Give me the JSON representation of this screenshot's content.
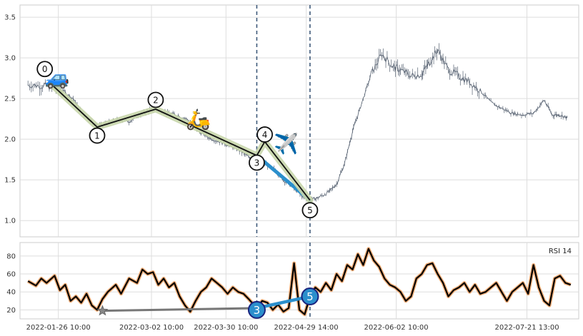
{
  "chart_data": [
    {
      "type": "line",
      "panel": "price",
      "x_start": "2022-01-12",
      "x_end": "2022-08-10",
      "ylim": [
        0.8,
        3.65
      ],
      "yticks": [
        1.0,
        1.5,
        2.0,
        2.5,
        3.0,
        3.5
      ],
      "grid": true,
      "series": [
        {
          "kind": "price-candles",
          "color": "#556070",
          "points": [
            [
              "2022-01-15",
              2.67
            ],
            [
              "2022-01-20",
              2.66
            ],
            [
              "2022-01-24",
              2.64
            ],
            [
              "2022-01-28",
              2.6
            ],
            [
              "2022-02-01",
              2.5
            ],
            [
              "2022-02-04",
              2.33
            ],
            [
              "2022-02-08",
              2.22
            ],
            [
              "2022-02-10",
              2.15
            ],
            [
              "2022-02-14",
              2.2
            ],
            [
              "2022-02-18",
              2.24
            ],
            [
              "2022-02-22",
              2.22
            ],
            [
              "2022-02-26",
              2.3
            ],
            [
              "2022-03-01",
              2.35
            ],
            [
              "2022-03-04",
              2.37
            ],
            [
              "2022-03-08",
              2.32
            ],
            [
              "2022-03-12",
              2.3
            ],
            [
              "2022-03-16",
              2.24
            ],
            [
              "2022-03-20",
              2.1
            ],
            [
              "2022-03-24",
              2.02
            ],
            [
              "2022-03-28",
              1.97
            ],
            [
              "2022-04-01",
              1.92
            ],
            [
              "2022-04-05",
              1.85
            ],
            [
              "2022-04-08",
              1.78
            ],
            [
              "2022-04-11",
              1.8
            ],
            [
              "2022-04-14",
              1.7
            ],
            [
              "2022-04-18",
              1.62
            ],
            [
              "2022-04-21",
              1.5
            ],
            [
              "2022-04-25",
              1.4
            ],
            [
              "2022-04-28",
              1.3
            ],
            [
              "2022-05-01",
              1.25
            ],
            [
              "2022-05-04",
              1.28
            ],
            [
              "2022-05-08",
              1.35
            ],
            [
              "2022-05-11",
              1.45
            ],
            [
              "2022-05-14",
              1.7
            ],
            [
              "2022-05-17",
              2.1
            ],
            [
              "2022-05-20",
              2.4
            ],
            [
              "2022-05-24",
              2.8
            ],
            [
              "2022-05-28",
              3.05
            ],
            [
              "2022-06-01",
              2.9
            ],
            [
              "2022-06-04",
              2.85
            ],
            [
              "2022-06-08",
              2.78
            ],
            [
              "2022-06-12",
              2.8
            ],
            [
              "2022-06-15",
              2.95
            ],
            [
              "2022-06-18",
              3.1
            ],
            [
              "2022-06-22",
              2.85
            ],
            [
              "2022-06-26",
              2.78
            ],
            [
              "2022-06-30",
              2.7
            ],
            [
              "2022-07-04",
              2.6
            ],
            [
              "2022-07-08",
              2.45
            ],
            [
              "2022-07-12",
              2.38
            ],
            [
              "2022-07-16",
              2.32
            ],
            [
              "2022-07-20",
              2.3
            ],
            [
              "2022-07-24",
              2.32
            ],
            [
              "2022-07-28",
              2.48
            ],
            [
              "2022-07-31",
              2.3
            ],
            [
              "2022-08-03",
              2.3
            ],
            [
              "2022-08-06",
              2.26
            ]
          ]
        },
        {
          "kind": "wave",
          "color": "#111111",
          "highlight": "#c8d6ab",
          "points": [
            {
              "label": "0",
              "date": "2022-01-24",
              "value": 2.67
            },
            {
              "label": "1",
              "date": "2022-02-10",
              "value": 2.15
            },
            {
              "label": "2",
              "date": "2022-03-04",
              "value": 2.37
            },
            {
              "label": "3",
              "date": "2022-04-11",
              "value": 1.8
            },
            {
              "label": "4",
              "date": "2022-04-14",
              "value": 1.97
            },
            {
              "label": "5",
              "date": "2022-05-01",
              "value": 1.25
            }
          ]
        },
        {
          "kind": "divergence",
          "color": "#2b8fcc",
          "from": {
            "date": "2022-04-11",
            "value": 1.8
          },
          "to": {
            "date": "2022-05-01",
            "value": 1.25
          }
        }
      ],
      "vlines": [
        "2022-04-11",
        "2022-05-01"
      ],
      "icons": [
        {
          "name": "car-icon",
          "glyph": "🚙",
          "date": "2022-01-26",
          "value": 2.76
        },
        {
          "name": "scooter-icon",
          "glyph": "🛵",
          "date": "2022-03-20",
          "value": 2.25
        },
        {
          "name": "airplane-icon",
          "glyph": "✈️",
          "date": "2022-04-22",
          "value": 1.95
        }
      ]
    },
    {
      "type": "line",
      "panel": "rsi",
      "title": "RSI 14",
      "ylim": [
        10,
        95
      ],
      "yticks": [
        20,
        40,
        60,
        80
      ],
      "grid": true,
      "series": [
        {
          "kind": "rsi",
          "color": "#000000",
          "glow": "#f0a060",
          "points": [
            [
              "2022-01-15",
              52
            ],
            [
              "2022-01-18",
              47
            ],
            [
              "2022-01-20",
              55
            ],
            [
              "2022-01-22",
              50
            ],
            [
              "2022-01-25",
              58
            ],
            [
              "2022-01-27",
              42
            ],
            [
              "2022-01-29",
              48
            ],
            [
              "2022-01-31",
              30
            ],
            [
              "2022-02-02",
              35
            ],
            [
              "2022-02-04",
              28
            ],
            [
              "2022-02-06",
              38
            ],
            [
              "2022-02-08",
              25
            ],
            [
              "2022-02-10",
              20
            ],
            [
              "2022-02-12",
              32
            ],
            [
              "2022-02-14",
              40
            ],
            [
              "2022-02-17",
              48
            ],
            [
              "2022-02-19",
              38
            ],
            [
              "2022-02-22",
              55
            ],
            [
              "2022-02-25",
              50
            ],
            [
              "2022-02-27",
              65
            ],
            [
              "2022-03-01",
              60
            ],
            [
              "2022-03-03",
              62
            ],
            [
              "2022-03-05",
              48
            ],
            [
              "2022-03-07",
              55
            ],
            [
              "2022-03-09",
              45
            ],
            [
              "2022-03-11",
              50
            ],
            [
              "2022-03-13",
              35
            ],
            [
              "2022-03-15",
              25
            ],
            [
              "2022-03-17",
              18
            ],
            [
              "2022-03-19",
              30
            ],
            [
              "2022-03-21",
              40
            ],
            [
              "2022-03-23",
              45
            ],
            [
              "2022-03-25",
              55
            ],
            [
              "2022-03-27",
              50
            ],
            [
              "2022-03-29",
              45
            ],
            [
              "2022-03-31",
              38
            ],
            [
              "2022-04-02",
              45
            ],
            [
              "2022-04-04",
              40
            ],
            [
              "2022-04-06",
              38
            ],
            [
              "2022-04-08",
              32
            ],
            [
              "2022-04-11",
              22
            ],
            [
              "2022-04-13",
              30
            ],
            [
              "2022-04-15",
              28
            ],
            [
              "2022-04-17",
              20
            ],
            [
              "2022-04-19",
              26
            ],
            [
              "2022-04-21",
              18
            ],
            [
              "2022-04-23",
              22
            ],
            [
              "2022-04-25",
              72
            ],
            [
              "2022-04-27",
              20
            ],
            [
              "2022-04-29",
              15
            ],
            [
              "2022-05-01",
              35
            ],
            [
              "2022-05-03",
              45
            ],
            [
              "2022-05-05",
              40
            ],
            [
              "2022-05-07",
              50
            ],
            [
              "2022-05-09",
              42
            ],
            [
              "2022-05-11",
              60
            ],
            [
              "2022-05-13",
              52
            ],
            [
              "2022-05-15",
              70
            ],
            [
              "2022-05-17",
              65
            ],
            [
              "2022-05-19",
              82
            ],
            [
              "2022-05-21",
              70
            ],
            [
              "2022-05-23",
              88
            ],
            [
              "2022-05-25",
              75
            ],
            [
              "2022-05-27",
              68
            ],
            [
              "2022-05-29",
              55
            ],
            [
              "2022-05-31",
              48
            ],
            [
              "2022-06-02",
              45
            ],
            [
              "2022-06-04",
              40
            ],
            [
              "2022-06-06",
              30
            ],
            [
              "2022-06-08",
              35
            ],
            [
              "2022-06-10",
              55
            ],
            [
              "2022-06-12",
              60
            ],
            [
              "2022-06-14",
              70
            ],
            [
              "2022-06-16",
              72
            ],
            [
              "2022-06-18",
              60
            ],
            [
              "2022-06-20",
              50
            ],
            [
              "2022-06-22",
              35
            ],
            [
              "2022-06-24",
              42
            ],
            [
              "2022-06-26",
              45
            ],
            [
              "2022-06-28",
              50
            ],
            [
              "2022-06-30",
              40
            ],
            [
              "2022-07-02",
              48
            ],
            [
              "2022-07-04",
              38
            ],
            [
              "2022-07-06",
              40
            ],
            [
              "2022-07-08",
              45
            ],
            [
              "2022-07-10",
              50
            ],
            [
              "2022-07-12",
              40
            ],
            [
              "2022-07-14",
              30
            ],
            [
              "2022-07-16",
              40
            ],
            [
              "2022-07-18",
              45
            ],
            [
              "2022-07-20",
              50
            ],
            [
              "2022-07-22",
              38
            ],
            [
              "2022-07-24",
              70
            ],
            [
              "2022-07-26",
              45
            ],
            [
              "2022-07-28",
              30
            ],
            [
              "2022-07-30",
              25
            ],
            [
              "2022-08-01",
              55
            ],
            [
              "2022-08-03",
              58
            ],
            [
              "2022-08-05",
              50
            ],
            [
              "2022-08-07",
              48
            ]
          ]
        },
        {
          "kind": "rsi-divergence",
          "color": "#777777",
          "from": {
            "date": "2022-02-12",
            "value": 19
          },
          "to": {
            "date": "2022-04-11",
            "value": 22
          }
        },
        {
          "kind": "rsi-divergence",
          "color": "#2b8fcc",
          "from": {
            "date": "2022-04-11",
            "value": 22
          },
          "to": {
            "date": "2022-05-01",
            "value": 35
          }
        }
      ],
      "markers": [
        {
          "label": "3",
          "date": "2022-04-11",
          "value": 20
        },
        {
          "label": "5",
          "date": "2022-05-01",
          "value": 35
        },
        {
          "label": "",
          "shape": "star",
          "date": "2022-02-12",
          "value": 19
        }
      ],
      "xticks": [
        "2022-01-26 10:00",
        "2022-03-02 10:00",
        "2022-03-30 10:00",
        "2022-04-29 14:00",
        "2022-06-02 10:00",
        "2022-07-21 13:00"
      ]
    }
  ]
}
